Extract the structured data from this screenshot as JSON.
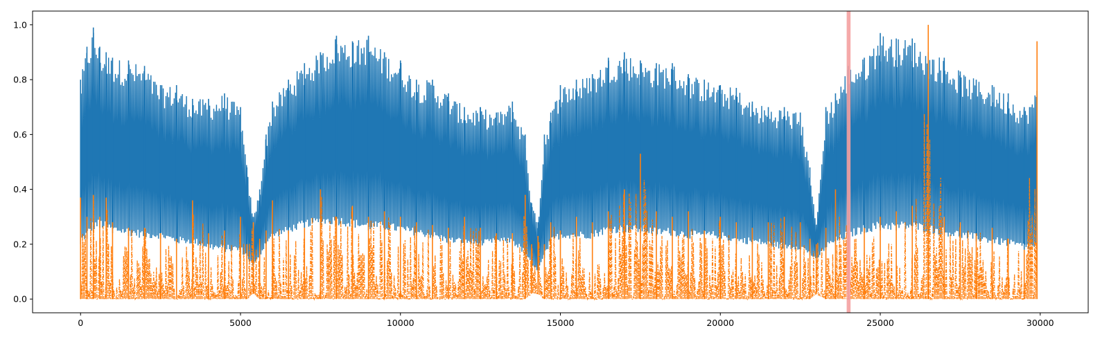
{
  "chart_data": {
    "type": "line",
    "title": "",
    "xlabel": "",
    "ylabel": "",
    "xlim": [
      -1500,
      31500
    ],
    "ylim": [
      -0.05,
      1.05
    ],
    "x_ticks": [
      0,
      5000,
      10000,
      15000,
      20000,
      25000,
      30000
    ],
    "x_tick_labels": [
      "0",
      "5000",
      "10000",
      "15000",
      "20000",
      "25000",
      "30000"
    ],
    "y_ticks": [
      0.0,
      0.2,
      0.4,
      0.6,
      0.8,
      1.0
    ],
    "y_tick_labels": [
      "0.0",
      "0.2",
      "0.4",
      "0.6",
      "0.8",
      "1.0"
    ],
    "grid": false,
    "legend": "none",
    "highlight_span": {
      "x0": 23950,
      "x1": 24070,
      "color": "#f4a0a0"
    },
    "series": [
      {
        "color": "#1f77b4",
        "style": "solid",
        "x": [
          0,
          200,
          400,
          600,
          800,
          1000,
          1500,
          2000,
          2500,
          3000,
          3500,
          4000,
          4500,
          5000,
          5200,
          5400,
          5600,
          5800,
          6000,
          6500,
          7000,
          7500,
          8000,
          8500,
          9000,
          9500,
          10000,
          10500,
          11000,
          11500,
          12000,
          12500,
          13000,
          13500,
          13900,
          14100,
          14300,
          14500,
          14700,
          15000,
          15500,
          16000,
          16500,
          17000,
          17500,
          18000,
          18500,
          19000,
          19500,
          20000,
          20500,
          21000,
          21500,
          22000,
          22500,
          22800,
          23000,
          23300,
          23600,
          24000,
          24500,
          25000,
          25500,
          26000,
          26500,
          27000,
          27500,
          28000,
          28500,
          29000,
          29500,
          29900
        ],
        "max": [
          0.8,
          0.92,
          0.99,
          0.92,
          0.9,
          0.88,
          0.87,
          0.85,
          0.78,
          0.78,
          0.73,
          0.73,
          0.75,
          0.7,
          0.48,
          0.3,
          0.4,
          0.6,
          0.72,
          0.8,
          0.86,
          0.9,
          0.96,
          0.94,
          0.96,
          0.9,
          0.87,
          0.8,
          0.8,
          0.75,
          0.7,
          0.7,
          0.68,
          0.72,
          0.6,
          0.35,
          0.28,
          0.6,
          0.68,
          0.78,
          0.8,
          0.82,
          0.88,
          0.9,
          0.87,
          0.86,
          0.86,
          0.82,
          0.8,
          0.78,
          0.77,
          0.72,
          0.7,
          0.7,
          0.68,
          0.48,
          0.27,
          0.7,
          0.75,
          0.85,
          0.88,
          0.97,
          0.95,
          0.95,
          0.9,
          0.88,
          0.83,
          0.8,
          0.78,
          0.75,
          0.7,
          0.76
        ],
        "min": [
          0.2,
          0.22,
          0.25,
          0.26,
          0.25,
          0.24,
          0.23,
          0.22,
          0.22,
          0.2,
          0.2,
          0.18,
          0.17,
          0.17,
          0.15,
          0.12,
          0.15,
          0.2,
          0.22,
          0.24,
          0.26,
          0.27,
          0.27,
          0.26,
          0.25,
          0.25,
          0.24,
          0.23,
          0.22,
          0.2,
          0.2,
          0.19,
          0.2,
          0.2,
          0.16,
          0.12,
          0.1,
          0.15,
          0.2,
          0.22,
          0.22,
          0.22,
          0.24,
          0.24,
          0.24,
          0.23,
          0.23,
          0.22,
          0.22,
          0.22,
          0.2,
          0.2,
          0.19,
          0.18,
          0.18,
          0.16,
          0.14,
          0.18,
          0.2,
          0.22,
          0.24,
          0.25,
          0.25,
          0.25,
          0.24,
          0.23,
          0.22,
          0.21,
          0.2,
          0.19,
          0.18,
          0.18
        ]
      },
      {
        "color": "#ff7f0e",
        "style": "dashdot",
        "x": [
          0,
          200,
          400,
          600,
          800,
          1000,
          1500,
          2000,
          2500,
          3000,
          3500,
          4000,
          4500,
          5000,
          5200,
          5400,
          5600,
          5800,
          6000,
          6500,
          7000,
          7500,
          8000,
          8500,
          9000,
          9500,
          10000,
          10500,
          11000,
          11500,
          12000,
          12500,
          13000,
          13500,
          13900,
          14100,
          14300,
          14500,
          14700,
          15000,
          15500,
          16000,
          16500,
          17000,
          17500,
          18000,
          18500,
          19000,
          19500,
          20000,
          20500,
          21000,
          21500,
          22000,
          22500,
          22800,
          23000,
          23300,
          23600,
          24000,
          24500,
          25000,
          25500,
          26000,
          26500,
          27000,
          27500,
          28000,
          28500,
          29000,
          29500,
          29900
        ],
        "max": [
          0.37,
          0.3,
          0.38,
          0.3,
          0.37,
          0.28,
          0.26,
          0.26,
          0.24,
          0.22,
          0.36,
          0.24,
          0.25,
          0.3,
          0.2,
          0.28,
          0.22,
          0.25,
          0.36,
          0.25,
          0.26,
          0.4,
          0.3,
          0.34,
          0.3,
          0.32,
          0.3,
          0.28,
          0.27,
          0.26,
          0.3,
          0.26,
          0.24,
          0.24,
          0.38,
          0.2,
          0.23,
          0.2,
          0.28,
          0.25,
          0.3,
          0.28,
          0.32,
          0.4,
          0.53,
          0.32,
          0.3,
          0.32,
          0.25,
          0.3,
          0.28,
          0.26,
          0.28,
          0.3,
          0.28,
          0.22,
          0.2,
          0.26,
          0.4,
          0.27,
          0.26,
          0.3,
          0.32,
          0.34,
          1.0,
          0.3,
          0.28,
          0.24,
          0.26,
          0.22,
          0.18,
          0.94
        ],
        "min": [
          0.0,
          0.0,
          0.0,
          0.0,
          0.0,
          0.0,
          0.0,
          0.0,
          0.0,
          0.0,
          0.0,
          0.0,
          0.0,
          0.0,
          0.0,
          0.02,
          0.0,
          0.0,
          0.0,
          0.0,
          0.0,
          0.0,
          0.0,
          0.0,
          0.0,
          0.0,
          0.0,
          0.0,
          0.0,
          0.0,
          0.0,
          0.0,
          0.0,
          0.0,
          0.0,
          0.02,
          0.02,
          0.0,
          0.0,
          0.0,
          0.0,
          0.0,
          0.0,
          0.0,
          0.0,
          0.0,
          0.0,
          0.0,
          0.0,
          0.0,
          0.0,
          0.0,
          0.0,
          0.0,
          0.0,
          0.0,
          0.02,
          0.0,
          0.0,
          0.0,
          0.0,
          0.0,
          0.0,
          0.0,
          0.0,
          0.0,
          0.0,
          0.0,
          0.0,
          0.0,
          0.0,
          0.0
        ]
      }
    ]
  }
}
